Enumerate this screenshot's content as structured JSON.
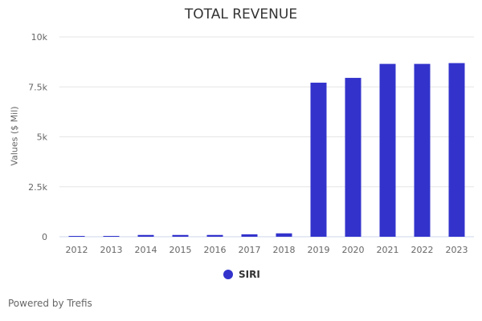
{
  "chart_data": {
    "type": "bar",
    "title": "TOTAL REVENUE",
    "xlabel": "",
    "ylabel": "Values ($ Mil)",
    "ylim": [
      0,
      10000
    ],
    "yticks": [
      {
        "v": 0,
        "label": "0"
      },
      {
        "v": 2500,
        "label": "2.5k"
      },
      {
        "v": 5000,
        "label": "5k"
      },
      {
        "v": 7500,
        "label": "7.5k"
      },
      {
        "v": 10000,
        "label": "10k"
      }
    ],
    "categories": [
      "2012",
      "2013",
      "2014",
      "2015",
      "2016",
      "2017",
      "2018",
      "2019",
      "2020",
      "2021",
      "2022",
      "2023"
    ],
    "series": [
      {
        "name": "SIRI",
        "color": "#3333cc",
        "values": [
          40,
          40,
          90,
          90,
          90,
          120,
          170,
          7710,
          7950,
          8650,
          8650,
          8690
        ]
      }
    ],
    "grid": true,
    "legend": "bottom-center"
  },
  "credit": "Powered by Trefis"
}
